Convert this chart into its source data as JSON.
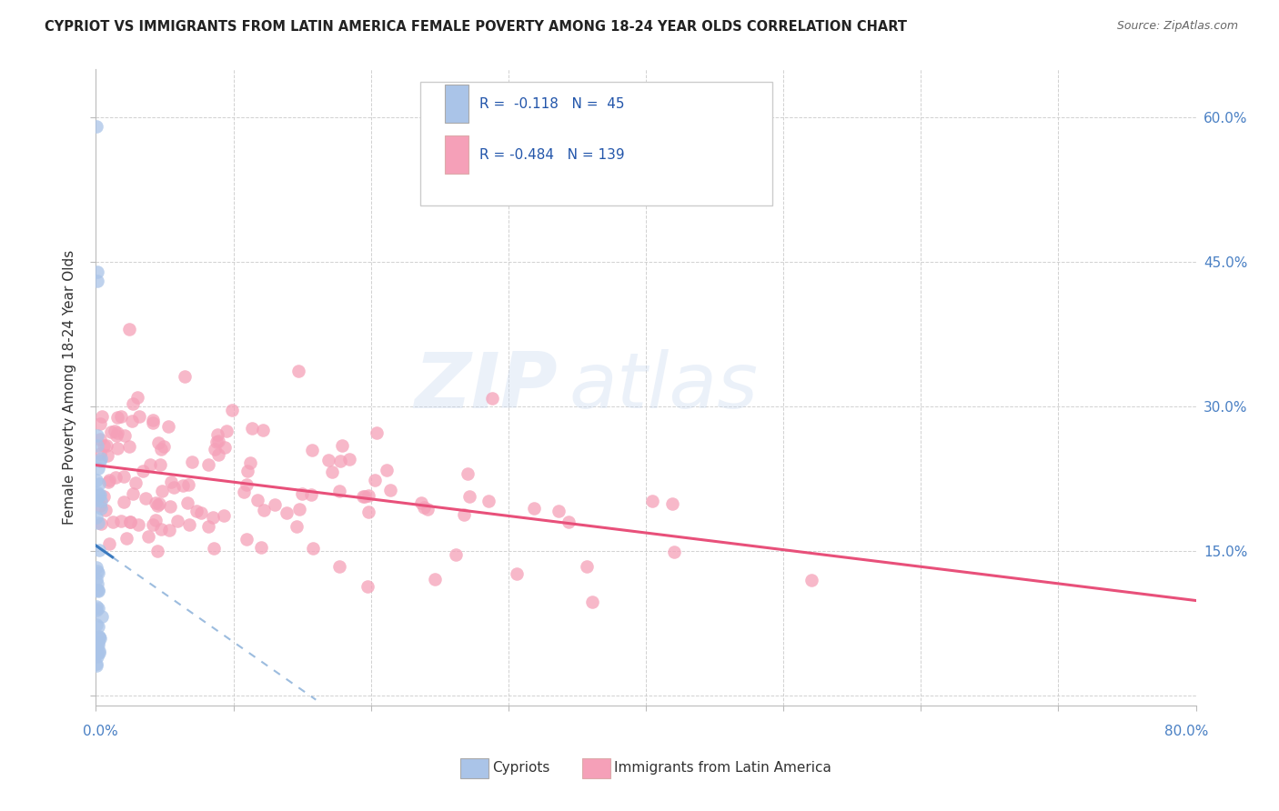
{
  "title": "CYPRIOT VS IMMIGRANTS FROM LATIN AMERICA FEMALE POVERTY AMONG 18-24 YEAR OLDS CORRELATION CHART",
  "source": "Source: ZipAtlas.com",
  "ylabel": "Female Poverty Among 18-24 Year Olds",
  "legend_label1": "Cypriots",
  "legend_label2": "Immigrants from Latin America",
  "cypriot_color": "#aac4e8",
  "latin_color": "#f5a0b8",
  "trend_cypriot_color": "#3a7abf",
  "trend_latin_color": "#e8507a",
  "watermark": "ZIPatlas",
  "watermark_color_zip": "#c8d8ef",
  "watermark_color_atlas": "#c8d8ef",
  "background": "#ffffff",
  "grid_color": "#cccccc",
  "xmin": 0.0,
  "xmax": 0.8,
  "ymin": -0.01,
  "ymax": 0.65,
  "title_color": "#222222",
  "source_color": "#666666",
  "axis_label_color": "#4a80c4",
  "legend_text_color": "#2255aa"
}
